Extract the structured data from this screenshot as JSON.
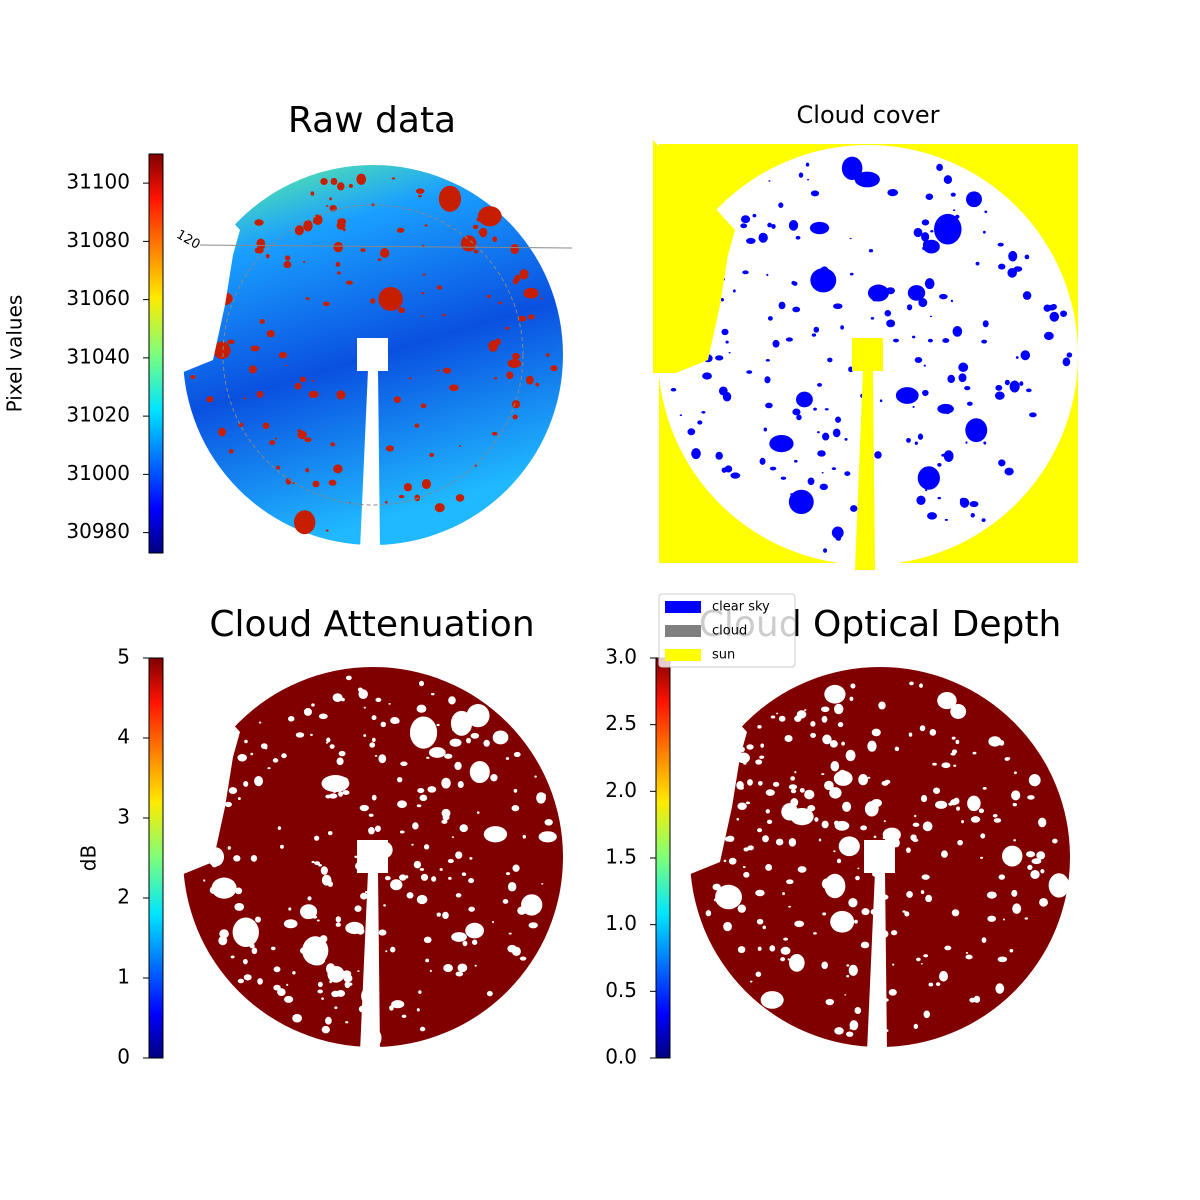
{
  "panels": [
    {
      "title": "Raw data",
      "polar_label": "120",
      "colorbar": {
        "label": "Pixel values",
        "lim": [
          30973,
          31110
        ],
        "ticks": [
          30980,
          31000,
          31020,
          31040,
          31060,
          31080,
          31100
        ]
      }
    },
    {
      "title": "Cloud cover",
      "legend": [
        {
          "name": "clear sky",
          "color": "#0000ff"
        },
        {
          "name": "cloud",
          "color": "#808080"
        },
        {
          "name": "sun",
          "color": "#ffff00"
        }
      ]
    },
    {
      "title": "Cloud Attenuation",
      "colorbar": {
        "label": "dB",
        "lim": [
          0,
          5
        ],
        "ticks": [
          0,
          1,
          2,
          3,
          4,
          5
        ]
      }
    },
    {
      "title": "Cloud Optical Depth",
      "colorbar": {
        "lim": [
          0,
          3
        ],
        "ticks": [
          {
            "value": 0,
            "label": "0.0"
          },
          {
            "value": 0.5,
            "label": "0.5"
          },
          {
            "value": 1,
            "label": "1.0"
          },
          {
            "value": 1.5,
            "label": "1.5"
          },
          {
            "value": 2,
            "label": "2.0"
          },
          {
            "value": 2.5,
            "label": "2.5"
          },
          {
            "value": 3,
            "label": "3.0"
          }
        ]
      }
    }
  ]
}
